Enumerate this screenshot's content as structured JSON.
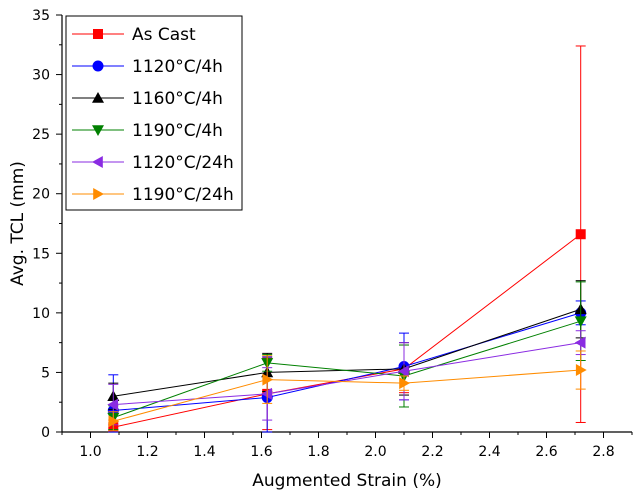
{
  "chart_data": {
    "type": "line",
    "xlabel": "Augmented Strain (%)",
    "ylabel": "Avg. TCL (mm)",
    "xlim": [
      0.9,
      2.9
    ],
    "ylim": [
      0,
      35
    ],
    "xticks": [
      "1.0",
      "1.2",
      "1.4",
      "1.6",
      "1.8",
      "2.0",
      "2.2",
      "2.4",
      "2.6",
      "2.8"
    ],
    "yticks": [
      "0",
      "5",
      "10",
      "15",
      "20",
      "25",
      "30",
      "35"
    ],
    "legend_position": "top-left",
    "grid": false,
    "series": [
      {
        "name": "As Cast",
        "color": "#ff0000",
        "marker": "square",
        "x": [
          1.08,
          1.62,
          2.1,
          2.72
        ],
        "y": [
          0.4,
          3.2,
          5.3,
          16.6
        ],
        "err": [
          0.6,
          3.0,
          2.0,
          15.8
        ]
      },
      {
        "name": "1120°C/4h",
        "color": "#0000ff",
        "marker": "circle",
        "x": [
          1.08,
          1.62,
          2.1,
          2.72
        ],
        "y": [
          1.8,
          2.9,
          5.5,
          10.0
        ],
        "err": [
          3.0,
          3.4,
          2.8,
          1.0
        ]
      },
      {
        "name": "1160°C/4h",
        "color": "#000000",
        "marker": "triangle-up",
        "x": [
          1.08,
          1.62,
          2.1,
          2.72
        ],
        "y": [
          3.0,
          5.0,
          5.3,
          10.3
        ],
        "err": [
          1.1,
          1.6,
          2.2,
          2.4
        ]
      },
      {
        "name": "1190°C/4h",
        "color": "#008000",
        "marker": "triangle-down",
        "x": [
          1.08,
          1.62,
          2.1,
          2.72
        ],
        "y": [
          1.2,
          5.8,
          4.7,
          9.3
        ],
        "err": [
          1.0,
          0.7,
          2.6,
          3.3
        ]
      },
      {
        "name": "1120°C/24h",
        "color": "#8a2be2",
        "marker": "triangle-left",
        "x": [
          1.08,
          1.62,
          2.1,
          2.72
        ],
        "y": [
          2.3,
          3.2,
          5.1,
          7.5
        ],
        "err": [
          1.7,
          2.2,
          2.4,
          1.0
        ]
      },
      {
        "name": "1190°C/24h",
        "color": "#ff8c00",
        "marker": "triangle-right",
        "x": [
          1.08,
          1.62,
          2.1,
          2.72
        ],
        "y": [
          0.9,
          4.4,
          4.1,
          5.2
        ],
        "err": [
          0.8,
          2.0,
          0.6,
          1.6
        ]
      }
    ]
  }
}
